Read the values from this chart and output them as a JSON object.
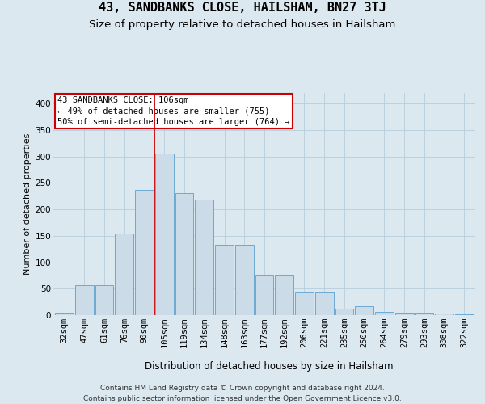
{
  "title": "43, SANDBANKS CLOSE, HAILSHAM, BN27 3TJ",
  "subtitle": "Size of property relative to detached houses in Hailsham",
  "xlabel": "Distribution of detached houses by size in Hailsham",
  "ylabel": "Number of detached properties",
  "categories": [
    "32sqm",
    "47sqm",
    "61sqm",
    "76sqm",
    "90sqm",
    "105sqm",
    "119sqm",
    "134sqm",
    "148sqm",
    "163sqm",
    "177sqm",
    "192sqm",
    "206sqm",
    "221sqm",
    "235sqm",
    "250sqm",
    "264sqm",
    "279sqm",
    "293sqm",
    "308sqm",
    "322sqm"
  ],
  "values": [
    4,
    57,
    57,
    155,
    237,
    305,
    231,
    219,
    133,
    133,
    76,
    76,
    43,
    43,
    12,
    17,
    6,
    4,
    4,
    3,
    2
  ],
  "bar_color": "#ccdbe8",
  "bar_edge_color": "#6aaad4",
  "vline_idx": 5,
  "vline_color": "#cc0000",
  "annotation_line1": "43 SANDBANKS CLOSE: 106sqm",
  "annotation_line2": "← 49% of detached houses are smaller (755)",
  "annotation_line3": "50% of semi-detached houses are larger (764) →",
  "annotation_facecolor": "white",
  "annotation_edgecolor": "#cc0000",
  "footer_line1": "Contains HM Land Registry data © Crown copyright and database right 2024.",
  "footer_line2": "Contains public sector information licensed under the Open Government Licence v3.0.",
  "bg_color": "#dce8f0",
  "ylim": [
    0,
    420
  ],
  "yticks": [
    0,
    50,
    100,
    150,
    200,
    250,
    300,
    350,
    400
  ],
  "grid_color": "#b8ccda",
  "title_fontsize": 11,
  "subtitle_fontsize": 9.5,
  "xlabel_fontsize": 8.5,
  "ylabel_fontsize": 8,
  "tick_fontsize": 7.5,
  "annotation_fontsize": 7.5,
  "footer_fontsize": 6.5
}
